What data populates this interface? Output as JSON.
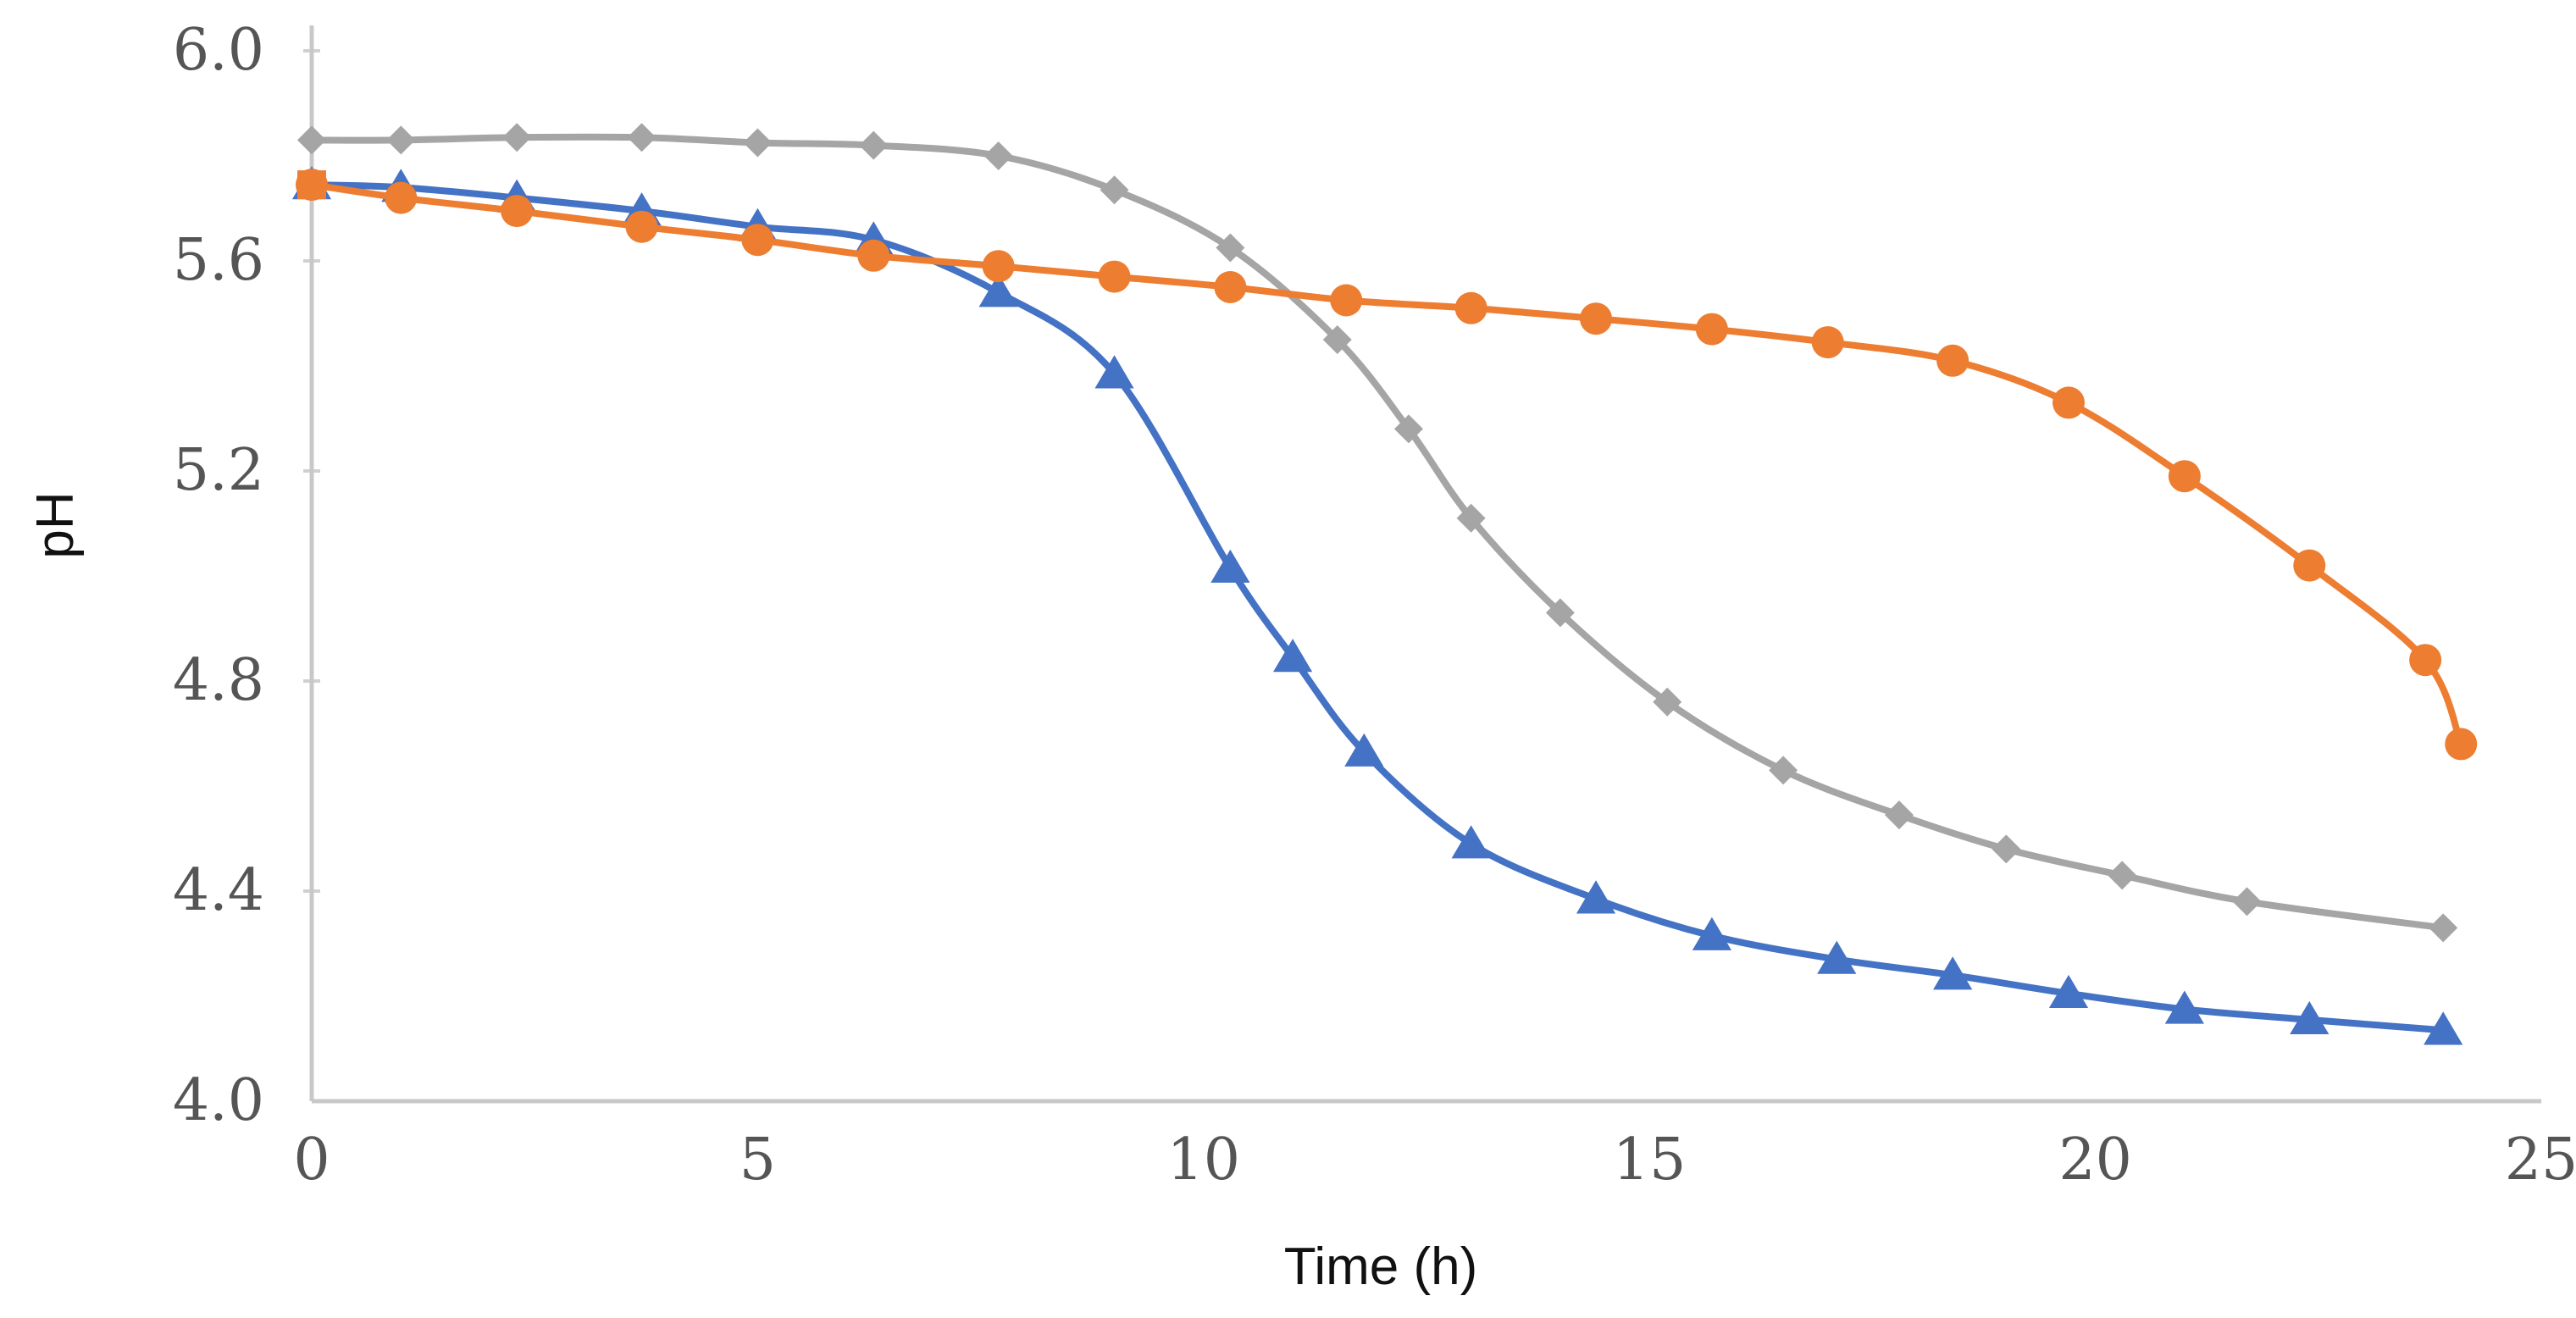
{
  "chart_data": {
    "type": "line",
    "title": "",
    "xlabel": "Time (h)",
    "ylabel": "pH",
    "xlim": [
      0,
      25
    ],
    "ylim": [
      4.0,
      6.0
    ],
    "x_ticks": [
      0,
      5,
      10,
      15,
      20,
      25
    ],
    "y_ticks": [
      4.0,
      4.4,
      4.8,
      5.2,
      5.6,
      6.0
    ],
    "x_tick_labels": [
      "0",
      "5",
      "10",
      "15",
      "20",
      "25"
    ],
    "y_tick_labels": [
      "4.0",
      "4.4",
      "4.8",
      "5.2",
      "5.6",
      "6.0"
    ],
    "grid": false,
    "legend": "none",
    "series": [
      {
        "name": "gray-diamond",
        "color": "#a5a5a5",
        "marker": "diamond",
        "x": [
          0,
          1,
          2.3,
          3.7,
          5,
          6.3,
          7.7,
          9,
          10.3,
          11.5,
          12.3,
          13,
          14,
          15.2,
          16.5,
          17.8,
          19,
          20.3,
          21.7,
          23.9
        ],
        "y": [
          5.83,
          5.83,
          5.835,
          5.835,
          5.825,
          5.82,
          5.8,
          5.735,
          5.625,
          5.45,
          5.28,
          5.11,
          4.93,
          4.76,
          4.63,
          4.545,
          4.48,
          4.43,
          4.38,
          4.33
        ]
      },
      {
        "name": "blue-triangle",
        "color": "#4472c4",
        "marker": "triangle",
        "x": [
          0,
          1,
          2.3,
          3.7,
          5,
          6.3,
          7.7,
          9,
          10.3,
          11,
          11.8,
          13,
          14.4,
          15.7,
          17.1,
          18.4,
          19.7,
          21,
          22.4,
          23.9
        ],
        "y": [
          5.745,
          5.74,
          5.72,
          5.695,
          5.665,
          5.64,
          5.54,
          5.385,
          5.015,
          4.845,
          4.665,
          4.49,
          4.385,
          4.315,
          4.27,
          4.24,
          4.205,
          4.175,
          4.155,
          4.135
        ]
      },
      {
        "name": "orange-circle",
        "color": "#ed7d31",
        "marker": "circle",
        "x": [
          0,
          1,
          2.3,
          3.7,
          5,
          6.3,
          7.7,
          9,
          10.3,
          11.6,
          13,
          14.4,
          15.7,
          17,
          18.4,
          19.7,
          21,
          22.4,
          23.7,
          24.1
        ],
        "y": [
          5.745,
          5.72,
          5.695,
          5.665,
          5.64,
          5.61,
          5.59,
          5.57,
          5.55,
          5.525,
          5.51,
          5.49,
          5.47,
          5.445,
          5.41,
          5.33,
          5.19,
          5.02,
          4.84,
          4.68
        ]
      }
    ]
  }
}
